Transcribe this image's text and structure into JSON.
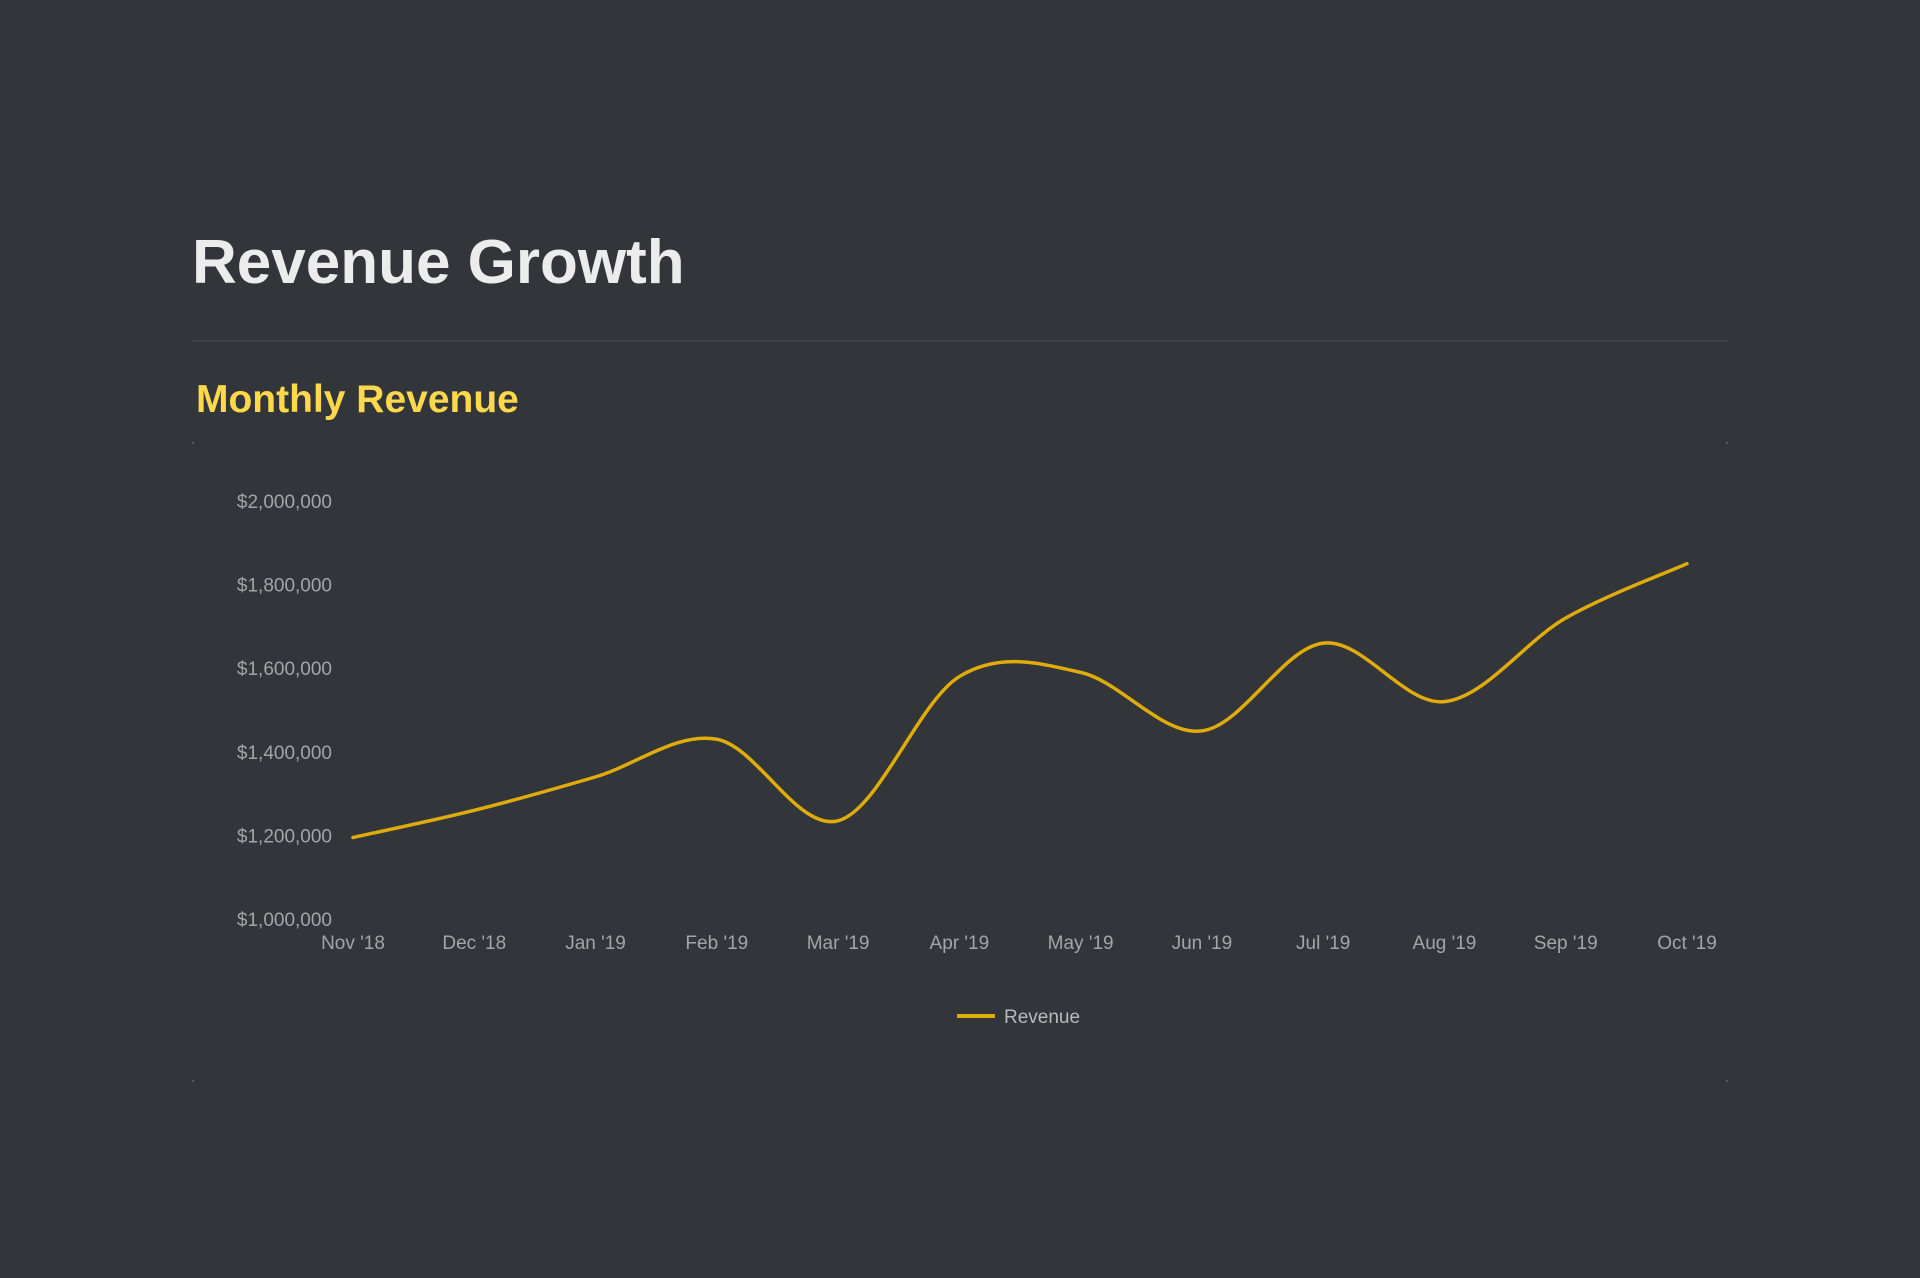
{
  "header": {
    "title": "Revenue Growth"
  },
  "section": {
    "title": "Monthly Revenue"
  },
  "colors": {
    "background": "#32353a",
    "title": "#ececec",
    "accent": "#fdd84b",
    "series": "#e0ac0c",
    "tick_text": "#a3a5a8"
  },
  "chart_data": {
    "type": "line",
    "title": "",
    "xlabel": "",
    "ylabel": "",
    "x": [
      "Nov '18",
      "Dec '18",
      "Jan '19",
      "Feb '19",
      "Mar '19",
      "Apr '19",
      "May '19",
      "Jun '19",
      "Jul '19",
      "Aug '19",
      "Sep '19",
      "Oct '19"
    ],
    "series": [
      {
        "name": "Revenue",
        "values": [
          1195000,
          1260000,
          1340000,
          1430000,
          1235000,
          1580000,
          1590000,
          1450000,
          1660000,
          1520000,
          1720000,
          1850000
        ]
      }
    ],
    "ylim": [
      1000000,
      2000000
    ],
    "yticks": [
      "$1,000,000",
      "$1,200,000",
      "$1,400,000",
      "$1,600,000",
      "$1,800,000",
      "$2,000,000"
    ],
    "grid": false,
    "legend": "bottom-center",
    "smooth": true
  }
}
